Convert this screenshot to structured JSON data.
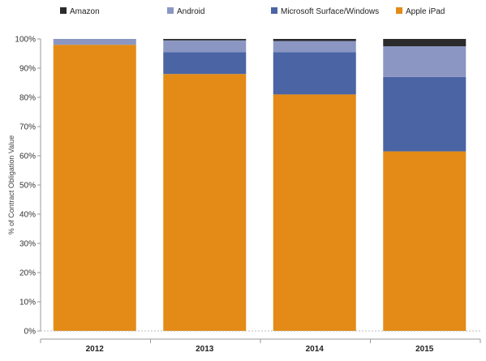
{
  "chart_data": {
    "type": "bar",
    "stacked": true,
    "categories": [
      "2012",
      "2013",
      "2014",
      "2015"
    ],
    "series": [
      {
        "name": "Apple iPad",
        "color": "#E38B16",
        "values": [
          98,
          88,
          81,
          61.5
        ]
      },
      {
        "name": "Microsoft Surface/Windows",
        "color": "#4A64A4",
        "values": [
          0,
          7.5,
          14.5,
          25.5
        ]
      },
      {
        "name": "Android",
        "color": "#8B97C2",
        "values": [
          2,
          4,
          3.8,
          10.5
        ]
      },
      {
        "name": "Amazon",
        "color": "#2B2B2B",
        "values": [
          0,
          0.5,
          0.7,
          2.5
        ]
      }
    ],
    "legend_order": [
      "Amazon",
      "Android",
      "Microsoft Surface/Windows",
      "Apple iPad"
    ],
    "legend_position": "top",
    "ylabel": "% of Contract Obligation Value",
    "xlabel": "",
    "ylim": [
      0,
      100
    ],
    "yticks": [
      "0%",
      "10%",
      "20%",
      "30%",
      "40%",
      "50%",
      "60%",
      "70%",
      "80%",
      "90%",
      "100%"
    ],
    "grid": false
  }
}
